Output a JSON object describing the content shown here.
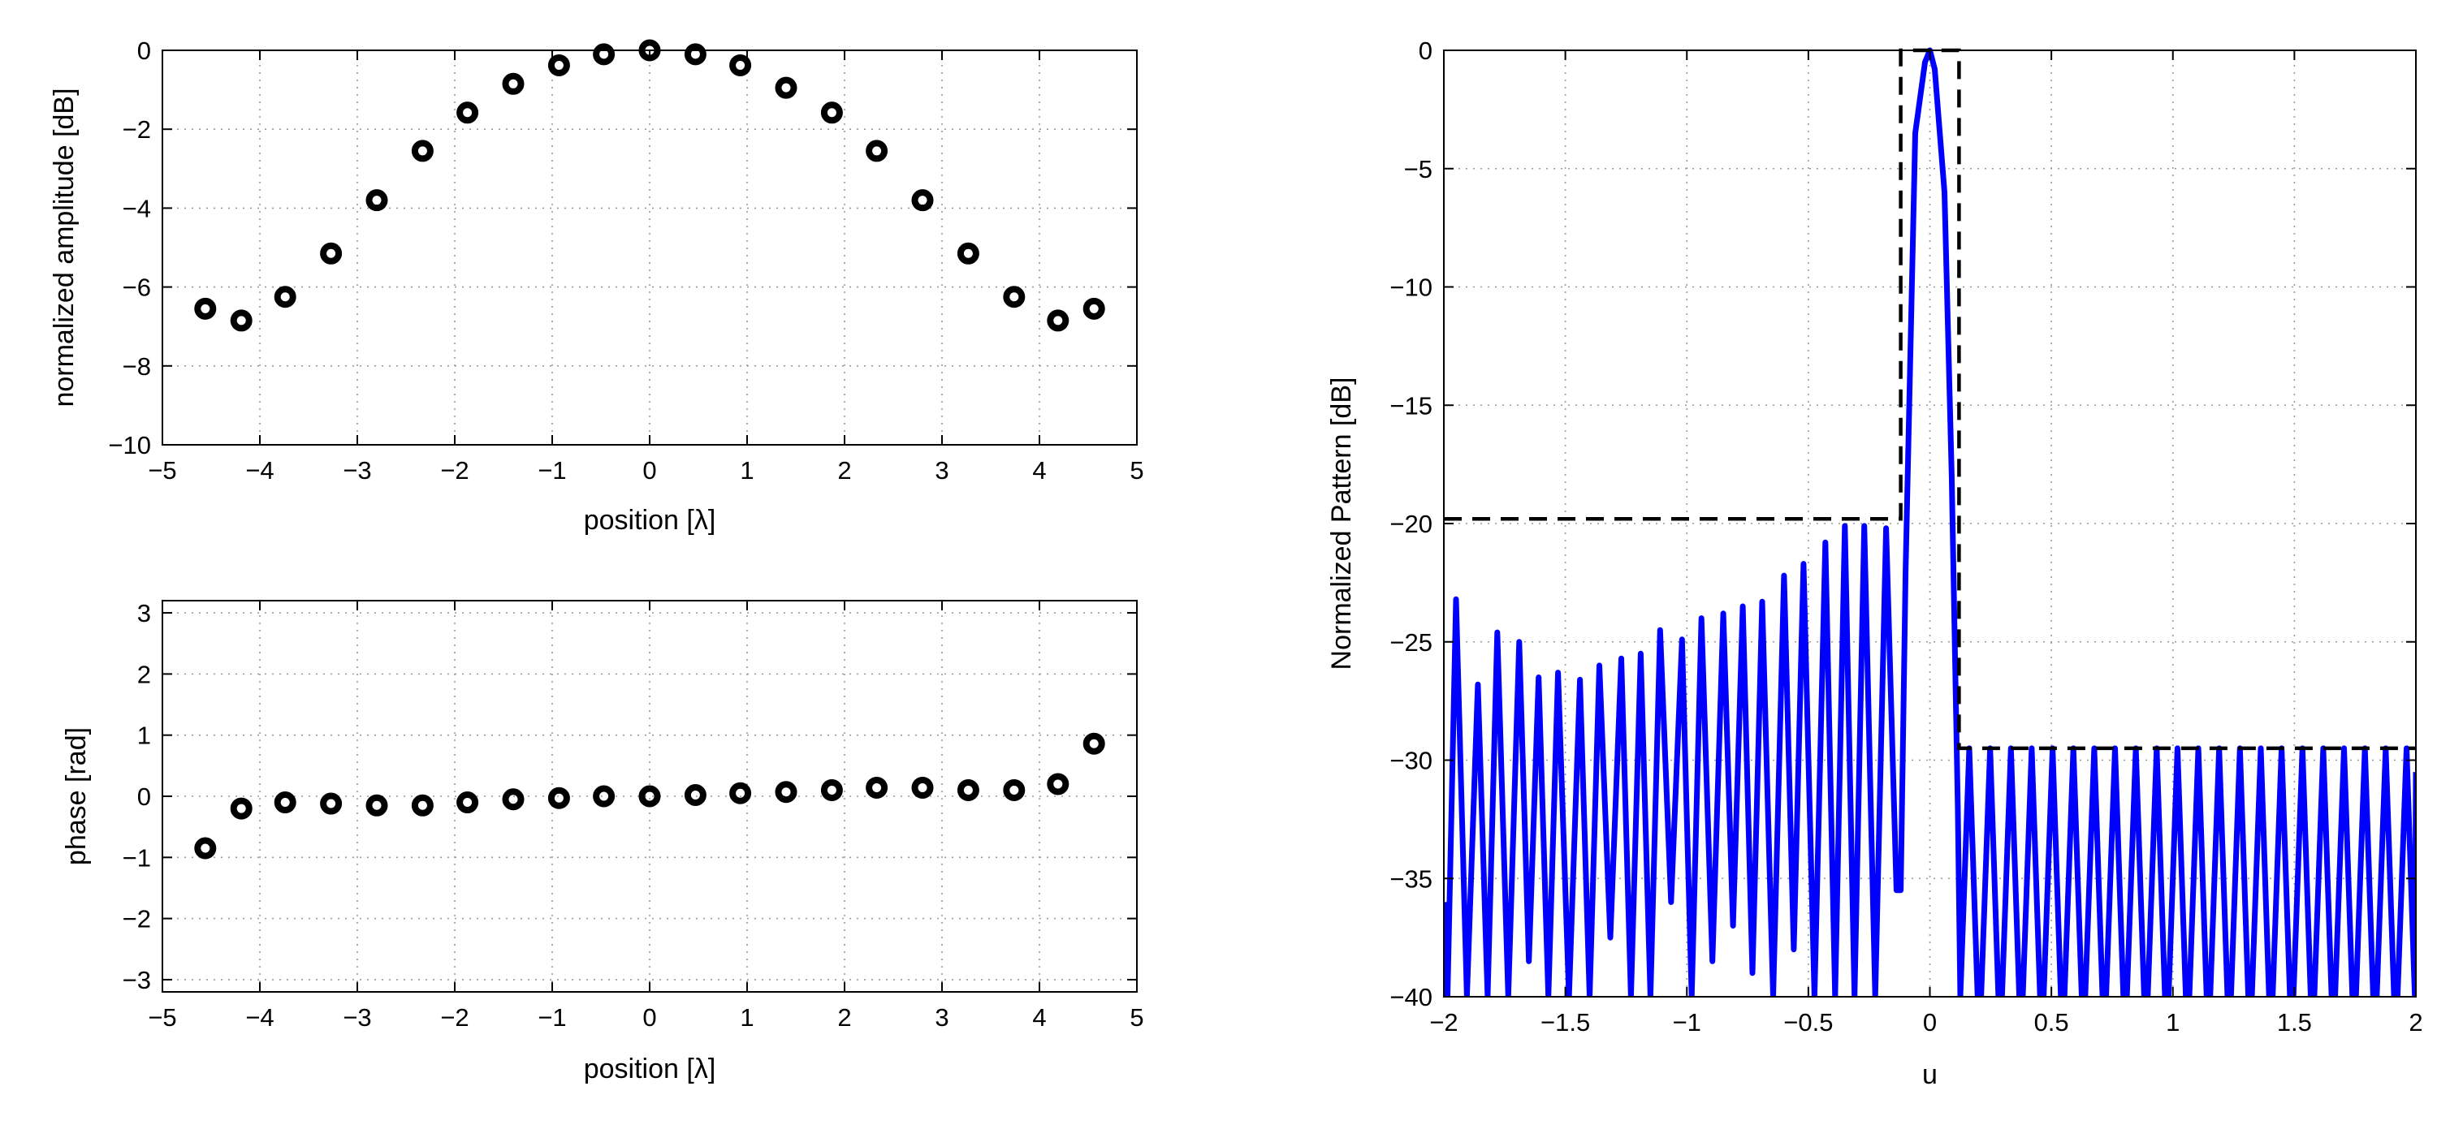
{
  "chart_data": [
    {
      "id": "amplitude",
      "type": "scatter",
      "title": "",
      "xlabel": "position [λ]",
      "ylabel": "normalized amplitude [dB]",
      "xlim": [
        -5,
        5
      ],
      "ylim": [
        -10,
        0
      ],
      "xticks": [
        "−5",
        "−4",
        "−3",
        "−2",
        "−1",
        "0",
        "1",
        "2",
        "3",
        "4",
        "5"
      ],
      "yticks": [
        "−10",
        "−8",
        "−6",
        "−4",
        "−2",
        "0"
      ],
      "grid": true,
      "marker": "circle",
      "marker_color": "#000000",
      "x": [
        -4.56,
        -4.19,
        -3.74,
        -3.27,
        -2.8,
        -2.33,
        -1.87,
        -1.4,
        -0.93,
        -0.47,
        0,
        0.47,
        0.93,
        1.4,
        1.87,
        2.33,
        2.8,
        3.27,
        3.74,
        4.19,
        4.56
      ],
      "y": [
        -6.55,
        -6.85,
        -6.25,
        -5.15,
        -3.8,
        -2.55,
        -1.58,
        -0.85,
        -0.38,
        -0.1,
        0,
        -0.1,
        -0.38,
        -0.95,
        -1.58,
        -2.55,
        -3.8,
        -5.15,
        -6.25,
        -6.85,
        -6.55
      ]
    },
    {
      "id": "phase",
      "type": "scatter",
      "title": "",
      "xlabel": "position [λ]",
      "ylabel": "phase [rad]",
      "xlim": [
        -5,
        5
      ],
      "ylim": [
        -3.2,
        3.2
      ],
      "xticks": [
        "−5",
        "−4",
        "−3",
        "−2",
        "−1",
        "0",
        "1",
        "2",
        "3",
        "4",
        "5"
      ],
      "yticks": [
        "−3",
        "−2",
        "−1",
        "0",
        "1",
        "2",
        "3"
      ],
      "grid": true,
      "marker": "circle",
      "marker_color": "#000000",
      "x": [
        -4.56,
        -4.19,
        -3.74,
        -3.27,
        -2.8,
        -2.33,
        -1.87,
        -1.4,
        -0.93,
        -0.47,
        0,
        0.47,
        0.93,
        1.4,
        1.87,
        2.33,
        2.8,
        3.27,
        3.74,
        4.19,
        4.56
      ],
      "y": [
        -0.85,
        -0.2,
        -0.1,
        -0.12,
        -0.15,
        -0.15,
        -0.1,
        -0.05,
        -0.03,
        0,
        0,
        0.02,
        0.05,
        0.07,
        0.1,
        0.14,
        0.14,
        0.1,
        0.1,
        0.2,
        0.86
      ]
    },
    {
      "id": "pattern",
      "type": "line",
      "title": "",
      "xlabel": "u",
      "ylabel": "Normalized Pattern [dB]",
      "xlim": [
        -2,
        2
      ],
      "ylim": [
        -40,
        0
      ],
      "xticks": [
        "−2",
        "−1.5",
        "−1",
        "−0.5",
        "0",
        "0.5",
        "1",
        "1.5",
        "2"
      ],
      "yticks": [
        "−40",
        "−35",
        "−30",
        "−25",
        "−20",
        "−15",
        "−10",
        "−5",
        "0"
      ],
      "grid": true,
      "series": [
        {
          "style": "solid",
          "color": "#0000ff",
          "mainlobe": [
            [
              -0.12,
              -35.5
            ],
            [
              -0.1,
              -22
            ],
            [
              -0.06,
              -3.5
            ],
            [
              -0.02,
              -0.5
            ],
            [
              0,
              0
            ],
            [
              0.02,
              -0.8
            ],
            [
              0.06,
              -6
            ],
            [
              0.09,
              -18
            ],
            [
              0.115,
              -32
            ]
          ],
          "left_sidelobes": {
            "u_range": [
              -2,
              -0.115
            ],
            "peaks": [
              [
                -1.95,
                -23.2
              ],
              [
                -1.86,
                -26.8
              ],
              [
                -1.78,
                -24.6
              ],
              [
                -1.69,
                -25
              ],
              [
                -1.61,
                -26.5
              ],
              [
                -1.53,
                -26.3
              ],
              [
                -1.44,
                -26.6
              ],
              [
                -1.36,
                -26
              ],
              [
                -1.27,
                -25.7
              ],
              [
                -1.19,
                -25.5
              ],
              [
                -1.11,
                -24.5
              ],
              [
                -1.02,
                -24.9
              ],
              [
                -0.94,
                -24
              ],
              [
                -0.85,
                -23.8
              ],
              [
                -0.77,
                -23.5
              ],
              [
                -0.69,
                -23.3
              ],
              [
                -0.6,
                -22.2
              ],
              [
                -0.52,
                -21.7
              ],
              [
                -0.43,
                -20.8
              ],
              [
                -0.35,
                -20.1
              ],
              [
                -0.27,
                -20.1
              ],
              [
                -0.18,
                -20.2
              ]
            ],
            "nulls": [
              -40,
              -40,
              -40,
              -40,
              -38.5,
              -40,
              -40,
              -40,
              -37.5,
              -40,
              -40,
              -36,
              -40,
              -38.5,
              -37,
              -39,
              -40,
              -38,
              -40,
              -40,
              -40,
              -40,
              -35.5
            ],
            "first_value": -36
          },
          "right_sidelobes": {
            "u_range": [
              0.115,
              2
            ],
            "peak_level": -29.5,
            "null_level": -40,
            "count": 22
          }
        },
        {
          "style": "dashed",
          "color": "#000000",
          "points": [
            [
              -2,
              -19.8
            ],
            [
              -0.12,
              -19.8
            ],
            [
              -0.12,
              0
            ],
            [
              0.12,
              0
            ],
            [
              0.12,
              -29.5
            ],
            [
              2,
              -29.5
            ]
          ]
        }
      ]
    }
  ]
}
